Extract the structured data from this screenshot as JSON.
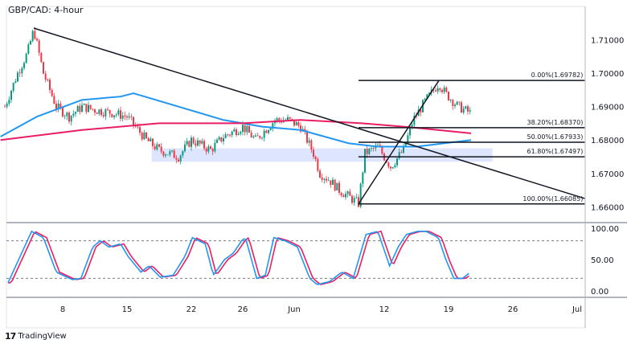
{
  "chart_data": {
    "type": "candlestick",
    "title": "GBP/CAD: 4-hour",
    "price_axis": {
      "ticks": [
        "1.71000",
        "1.70000",
        "1.69000",
        "1.68000",
        "1.67000",
        "1.66000"
      ],
      "values": [
        1.71,
        1.7,
        1.69,
        1.68,
        1.67,
        1.66
      ],
      "range": [
        1.6555,
        1.72
      ]
    },
    "time_axis": {
      "ticks": [
        {
          "label": "8",
          "date": "05-08 00:00"
        },
        {
          "label": "15",
          "date": "05-15 00:00"
        },
        {
          "label": "22",
          "date": "05-22 00:00"
        },
        {
          "label": "26",
          "date": "05-26 00:00"
        },
        {
          "label": "Jun",
          "date": "06-01 00:00"
        },
        {
          "label": "12",
          "date": "06-12 00:00"
        },
        {
          "label": "19",
          "date": "06-19 00:00"
        },
        {
          "label": "26",
          "date": "06-26 00:00"
        },
        {
          "label": "Jul",
          "date": "07-03 00:00"
        }
      ]
    },
    "price_path": [
      [
        "05-01 12:00",
        1.69
      ],
      [
        "05-02 12:00",
        1.7
      ],
      [
        "05-03 06:00",
        1.706
      ],
      [
        "05-03 18:00",
        1.713
      ],
      [
        "05-04 12:00",
        1.7
      ],
      [
        "05-05 12:00",
        1.69
      ],
      [
        "05-08 12:00",
        1.687
      ],
      [
        "05-09 12:00",
        1.69
      ],
      [
        "05-10 12:00",
        1.689
      ],
      [
        "05-12 00:00",
        1.688
      ],
      [
        "05-15 00:00",
        1.687
      ],
      [
        "05-16 12:00",
        1.68
      ],
      [
        "05-17 12:00",
        1.677
      ],
      [
        "05-19 00:00",
        1.675
      ],
      [
        "05-22 00:00",
        1.68
      ],
      [
        "05-23 12:00",
        1.677
      ],
      [
        "05-24 12:00",
        1.681
      ],
      [
        "05-26 00:00",
        1.684
      ],
      [
        "05-29 00:00",
        1.68
      ],
      [
        "05-30 12:00",
        1.686
      ],
      [
        "05-31 12:00",
        1.686
      ],
      [
        "06-01 12:00",
        1.684
      ],
      [
        "06-02 12:00",
        1.676
      ],
      [
        "06-05 00:00",
        1.67
      ],
      [
        "06-05 18:00",
        1.668
      ],
      [
        "06-06 12:00",
        1.665
      ],
      [
        "06-07 06:00",
        1.663
      ],
      [
        "06-08 00:00",
        1.661
      ],
      [
        "06-08 12:00",
        1.676
      ],
      [
        "06-09 12:00",
        1.678
      ],
      [
        "06-12 12:00",
        1.672
      ],
      [
        "06-13 12:00",
        1.677
      ],
      [
        "06-14 06:00",
        1.686
      ],
      [
        "06-15 06:00",
        1.692
      ],
      [
        "06-16 06:00",
        1.697
      ],
      [
        "06-16 18:00",
        1.694
      ],
      [
        "06-19 18:00",
        1.69
      ],
      [
        "06-20 18:00",
        1.688
      ]
    ],
    "moving_averages": [
      {
        "color": "#2196f3",
        "points": [
          [
            "05-01 04:00",
            1.681
          ],
          [
            "05-04 00:00",
            1.687
          ],
          [
            "05-09 12:00",
            1.692
          ],
          [
            "05-12 12:00",
            1.693
          ],
          [
            "05-15 12:00",
            1.694
          ],
          [
            "05-19 00:00",
            1.69
          ],
          [
            "05-24 12:00",
            1.686
          ],
          [
            "05-29 12:00",
            1.684
          ],
          [
            "06-01 12:00",
            1.683
          ],
          [
            "06-07 06:00",
            1.679
          ],
          [
            "06-09 12:00",
            1.678
          ],
          [
            "06-14 12:00",
            1.678
          ],
          [
            "06-20 18:00",
            1.68
          ]
        ]
      },
      {
        "color": "#e91e63",
        "points": [
          [
            "05-01 04:00",
            1.68
          ],
          [
            "05-09 12:00",
            1.683
          ],
          [
            "05-17 12:00",
            1.685
          ],
          [
            "05-26 00:00",
            1.685
          ],
          [
            "06-01 12:00",
            1.686
          ],
          [
            "06-08 06:00",
            1.685
          ],
          [
            "06-13 12:00",
            1.684
          ],
          [
            "06-20 18:00",
            1.682
          ]
        ]
      }
    ],
    "trendlines": [
      {
        "from": [
          "05-03 18:00",
          1.7135
        ],
        "to": [
          "07-03 14:00",
          1.6625
        ]
      },
      {
        "from": [
          "06-08 00:00",
          1.66085
        ],
        "to": [
          "06-16 06:00",
          1.69782
        ]
      }
    ],
    "zone": {
      "from": "05-16 22:00",
      "to": "06-22 10:00",
      "low": 1.6735,
      "high": 1.6775,
      "color": "#d6e0ff"
    },
    "fibonacci": {
      "from": "06-08 00:00",
      "to": "07-03 14:00",
      "levels": [
        {
          "label": "0.00%(1.69782)",
          "price": 1.69782
        },
        {
          "label": "38.20%(1.68370)",
          "price": 1.6837
        },
        {
          "label": "50.00%(1.67933)",
          "price": 1.67933
        },
        {
          "label": "61.80%(1.67497)",
          "price": 1.67497
        },
        {
          "label": "100.00%(1.66085)",
          "price": 1.66085
        }
      ]
    },
    "oscillator": {
      "ticks": [
        "100.00",
        "50.00",
        "0.00"
      ],
      "tick_values": [
        100,
        50,
        0
      ],
      "levels": [
        80,
        20
      ],
      "colors": {
        "k": "#2196f3",
        "d": "#e91e63"
      },
      "points": [
        [
          "05-01 18:00",
          13
        ],
        [
          "05-03 14:00",
          95
        ],
        [
          "05-04 12:00",
          85
        ],
        [
          "05-05 12:00",
          30
        ],
        [
          "05-08 18:00",
          18
        ],
        [
          "05-09 10:00",
          20
        ],
        [
          "05-10 08:00",
          70
        ],
        [
          "05-10 22:00",
          80
        ],
        [
          "05-11 14:00",
          70
        ],
        [
          "05-12 12:00",
          75
        ],
        [
          "05-15 02:00",
          55
        ],
        [
          "05-16 02:00",
          30
        ],
        [
          "05-16 17:00",
          40
        ],
        [
          "05-17 14:00",
          22
        ],
        [
          "05-18 14:00",
          25
        ],
        [
          "05-19 12:00",
          55
        ],
        [
          "05-22 02:00",
          85
        ],
        [
          "05-23 02:00",
          75
        ],
        [
          "05-23 17:00",
          25
        ],
        [
          "05-24 14:00",
          50
        ],
        [
          "05-25 06:00",
          60
        ],
        [
          "05-25 22:00",
          80
        ],
        [
          "05-26 05:00",
          85
        ],
        [
          "05-29 02:00",
          20
        ],
        [
          "05-29 18:00",
          25
        ],
        [
          "05-30 10:00",
          85
        ],
        [
          "05-31 07:00",
          80
        ],
        [
          "06-01 06:00",
          70
        ],
        [
          "06-02 05:00",
          20
        ],
        [
          "06-02 19:00",
          10
        ],
        [
          "06-05 18:00",
          15
        ],
        [
          "06-06 17:00",
          30
        ],
        [
          "06-07 14:00",
          20
        ],
        [
          "06-08 14:00",
          90
        ],
        [
          "06-09 12:00",
          95
        ],
        [
          "06-12 10:00",
          40
        ],
        [
          "06-13 02:00",
          70
        ],
        [
          "06-13 17:00",
          90
        ],
        [
          "06-14 14:00",
          95
        ],
        [
          "06-15 06:00",
          95
        ],
        [
          "06-16 05:00",
          85
        ],
        [
          "06-16 19:00",
          50
        ],
        [
          "06-19 10:00",
          20
        ],
        [
          "06-20 02:00",
          20
        ],
        [
          "06-20 17:00",
          30
        ]
      ]
    },
    "colors": {
      "up": "#089981",
      "down": "#f23645",
      "line": "#131722"
    }
  },
  "footer": {
    "brand": "TradingView"
  }
}
